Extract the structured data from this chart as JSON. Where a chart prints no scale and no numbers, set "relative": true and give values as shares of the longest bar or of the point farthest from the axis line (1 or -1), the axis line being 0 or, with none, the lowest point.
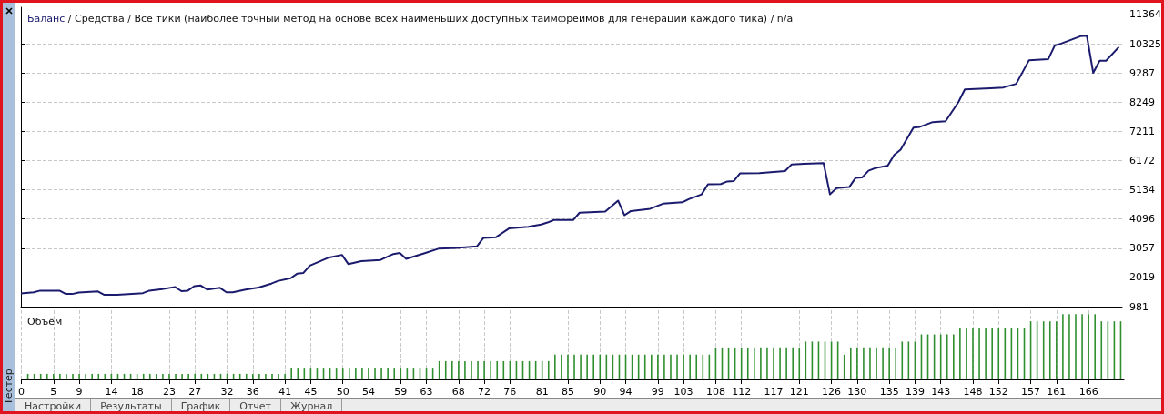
{
  "chart_data": [
    {
      "type": "line",
      "title": "/ Средства / Все тики (наиболее точный метод на основе всех наименьших доступных таймфреймов для генерации каждого тика) / n/a",
      "xlim": [
        0,
        171.5
      ],
      "ylim": [
        981,
        11620
      ],
      "yticks": [
        981,
        2019,
        3057,
        4096,
        5134,
        6172,
        7211,
        8249,
        9287,
        10325,
        11364
      ],
      "grid": true,
      "tick_labels": "y",
      "series": [
        {
          "name": "Баланс",
          "color": "#1b1b6e",
          "x": [
            0,
            2,
            3,
            6,
            7,
            8,
            9,
            12,
            13,
            15,
            19,
            20,
            22,
            24,
            25,
            26,
            27,
            28,
            29,
            31,
            32,
            33,
            35,
            37,
            39,
            40,
            42,
            43,
            44,
            45,
            48,
            50,
            51,
            53,
            56,
            58,
            59,
            60,
            63,
            65,
            68,
            71,
            72,
            74,
            76,
            79,
            81,
            82,
            83,
            86,
            87,
            91,
            93,
            94,
            95,
            98,
            100,
            103,
            104,
            106,
            107,
            109,
            110,
            111,
            112,
            115,
            119,
            120,
            122,
            125,
            126,
            127,
            129,
            130,
            131,
            132,
            133,
            135,
            136,
            137,
            139,
            140,
            142,
            144,
            146,
            147,
            151,
            153,
            155,
            157,
            160,
            161,
            162,
            165,
            166,
            167,
            168,
            169,
            171
          ],
          "values": [
            1450,
            1490,
            1550,
            1550,
            1430,
            1430,
            1480,
            1520,
            1400,
            1400,
            1460,
            1550,
            1600,
            1680,
            1530,
            1550,
            1710,
            1730,
            1590,
            1650,
            1490,
            1490,
            1590,
            1660,
            1800,
            1890,
            1990,
            2150,
            2180,
            2440,
            2730,
            2820,
            2490,
            2600,
            2640,
            2850,
            2890,
            2680,
            2890,
            3040,
            3070,
            3120,
            3420,
            3450,
            3760,
            3820,
            3900,
            3970,
            4060,
            4060,
            4320,
            4360,
            4750,
            4230,
            4380,
            4460,
            4640,
            4690,
            4800,
            4970,
            5330,
            5340,
            5430,
            5440,
            5720,
            5730,
            5800,
            6030,
            6060,
            6080,
            4970,
            5190,
            5230,
            5560,
            5570,
            5810,
            5900,
            5990,
            6370,
            6560,
            7340,
            7370,
            7540,
            7570,
            8250,
            8700,
            8740,
            8770,
            8900,
            9740,
            9780,
            10260,
            10330,
            10590,
            10610,
            9290,
            9720,
            9720,
            10210
          ]
        }
      ]
    },
    {
      "type": "bar",
      "title": "Объём",
      "relative": true,
      "xlim": [
        0,
        171.5
      ],
      "xticks": [
        0,
        5,
        9,
        14,
        18,
        23,
        27,
        32,
        36,
        41,
        45,
        50,
        54,
        59,
        63,
        68,
        72,
        76,
        81,
        85,
        90,
        94,
        99,
        103,
        108,
        112,
        117,
        121,
        126,
        130,
        135,
        139,
        143,
        148,
        152,
        157,
        161,
        166
      ],
      "grid": "x",
      "tick_labels": "x",
      "annotations": [
        "Настройки",
        "Результаты",
        "График",
        "Отчет",
        "Журнал",
        "Тестер"
      ],
      "series": [
        {
          "color": "#2f8f2f",
          "x": [
            1,
            2,
            3,
            4,
            5,
            6,
            7,
            8,
            9,
            10,
            11,
            12,
            13,
            14,
            15,
            16,
            17,
            18,
            19,
            20,
            21,
            22,
            23,
            24,
            25,
            26,
            27,
            28,
            29,
            30,
            31,
            32,
            33,
            34,
            35,
            36,
            37,
            38,
            39,
            40,
            41,
            42,
            43,
            44,
            45,
            46,
            47,
            48,
            49,
            50,
            51,
            52,
            53,
            54,
            55,
            56,
            57,
            58,
            59,
            60,
            61,
            62,
            63,
            64,
            65,
            66,
            67,
            68,
            69,
            70,
            71,
            72,
            73,
            74,
            75,
            76,
            77,
            78,
            79,
            80,
            81,
            82,
            83,
            84,
            85,
            86,
            87,
            88,
            89,
            90,
            91,
            92,
            93,
            94,
            95,
            96,
            97,
            98,
            99,
            100,
            101,
            102,
            103,
            104,
            105,
            106,
            107,
            108,
            109,
            110,
            111,
            112,
            113,
            114,
            115,
            116,
            117,
            118,
            119,
            120,
            121,
            122,
            123,
            124,
            125,
            126,
            127,
            128,
            129,
            130,
            131,
            132,
            133,
            134,
            135,
            136,
            137,
            138,
            139,
            140,
            141,
            142,
            143,
            144,
            145,
            146,
            147,
            148,
            149,
            150,
            151,
            152,
            153,
            154,
            155,
            156,
            157,
            158,
            159,
            160,
            161,
            162,
            163,
            164,
            165,
            166,
            167,
            168,
            169,
            170,
            171
          ],
          "values": [
            0.085,
            0.085,
            0.085,
            0.085,
            0.085,
            0.085,
            0.085,
            0.085,
            0.085,
            0.085,
            0.085,
            0.085,
            0.085,
            0.085,
            0.085,
            0.085,
            0.085,
            0.085,
            0.085,
            0.085,
            0.085,
            0.085,
            0.085,
            0.085,
            0.085,
            0.085,
            0.085,
            0.085,
            0.085,
            0.085,
            0.085,
            0.085,
            0.085,
            0.085,
            0.085,
            0.085,
            0.085,
            0.085,
            0.085,
            0.085,
            0.085,
            0.18,
            0.18,
            0.18,
            0.18,
            0.18,
            0.18,
            0.18,
            0.18,
            0.18,
            0.18,
            0.18,
            0.18,
            0.18,
            0.18,
            0.18,
            0.18,
            0.18,
            0.18,
            0.18,
            0.18,
            0.18,
            0.18,
            0.18,
            0.28,
            0.28,
            0.28,
            0.28,
            0.28,
            0.28,
            0.28,
            0.28,
            0.28,
            0.28,
            0.28,
            0.28,
            0.28,
            0.28,
            0.28,
            0.28,
            0.28,
            0.28,
            0.38,
            0.38,
            0.38,
            0.38,
            0.38,
            0.38,
            0.38,
            0.38,
            0.38,
            0.38,
            0.38,
            0.38,
            0.38,
            0.38,
            0.38,
            0.38,
            0.38,
            0.38,
            0.38,
            0.38,
            0.38,
            0.38,
            0.38,
            0.38,
            0.38,
            0.49,
            0.49,
            0.49,
            0.49,
            0.49,
            0.49,
            0.49,
            0.49,
            0.49,
            0.49,
            0.49,
            0.49,
            0.49,
            0.49,
            0.58,
            0.58,
            0.58,
            0.58,
            0.58,
            0.58,
            0.38,
            0.49,
            0.49,
            0.49,
            0.49,
            0.49,
            0.49,
            0.49,
            0.49,
            0.58,
            0.58,
            0.58,
            0.69,
            0.69,
            0.69,
            0.69,
            0.69,
            0.69,
            0.79,
            0.79,
            0.79,
            0.79,
            0.79,
            0.79,
            0.79,
            0.79,
            0.79,
            0.79,
            0.79,
            0.89,
            0.89,
            0.89,
            0.89,
            0.89,
            1,
            1,
            1,
            1,
            1,
            1,
            0.89,
            0.89,
            0.89,
            0.89
          ]
        }
      ]
    }
  ]
}
